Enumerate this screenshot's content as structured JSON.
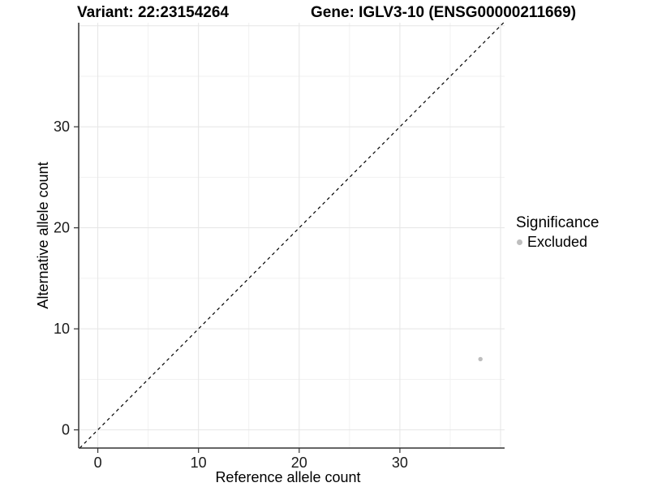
{
  "titles": {
    "variant": "Variant: 22:23154264",
    "gene": "Gene: IGLV3-10 (ENSG00000211669)"
  },
  "chart_data": {
    "type": "scatter",
    "xlabel": "Reference allele count",
    "ylabel": "Alternative allele count",
    "xlim": [
      -1.9,
      40.4
    ],
    "ylim": [
      -1.8,
      40.3
    ],
    "xticks": [
      0,
      10,
      20,
      30
    ],
    "yticks": [
      0,
      10,
      20,
      30
    ],
    "grid_major": [
      0,
      10,
      20,
      30,
      40
    ],
    "grid_minor": [
      5,
      15,
      25,
      35
    ],
    "identity_line": {
      "style": "dashed",
      "color": "#000000",
      "equation": "y = x"
    },
    "series": [
      {
        "name": "Excluded",
        "color": "#bebebe",
        "point_radius": 2.7,
        "points": [
          {
            "x": 38,
            "y": 7
          }
        ]
      }
    ],
    "legend": {
      "title": "Significance",
      "position": "right",
      "items": [
        {
          "label": "Excluded",
          "color": "#bebebe"
        }
      ]
    }
  },
  "colors": {
    "background": "#ffffff",
    "axis_line": "#333333",
    "tick_mark": "#333333",
    "tick_label": "#1a1a1a",
    "grid_major": "#e5e5e5",
    "grid_minor": "#f1f1f1"
  }
}
